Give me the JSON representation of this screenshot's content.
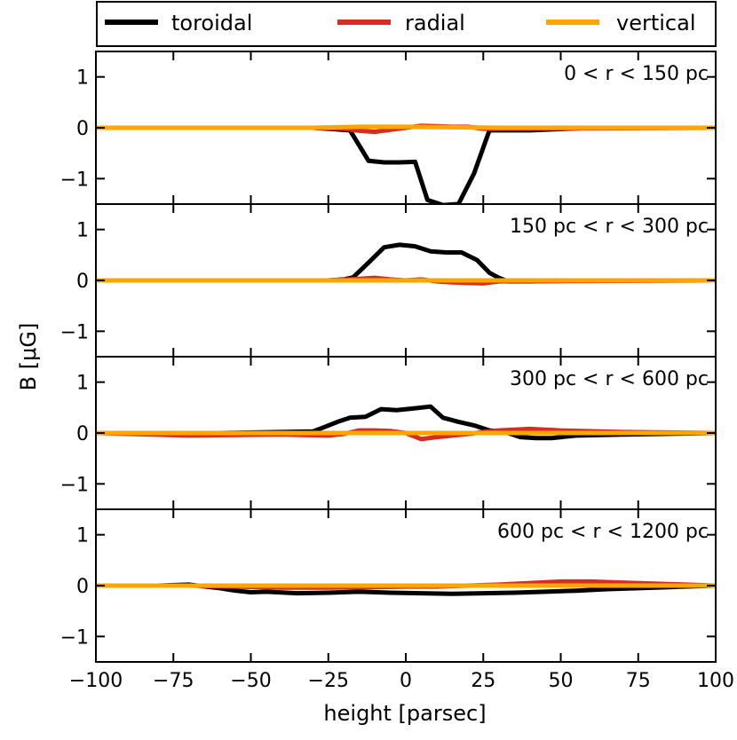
{
  "colors": {
    "toroidal": "#000000",
    "radial": "#d62d20",
    "vertical": "#ffa500"
  },
  "legend": {
    "items": [
      "toroidal",
      "radial",
      "vertical"
    ]
  },
  "chart_data": {
    "type": "line",
    "xlabel": "height [parsec]",
    "ylabel": "B [μG]",
    "xlim": [
      -100,
      100
    ],
    "ylim": [
      -1.5,
      1.5
    ],
    "x_ticks": [
      -100,
      -75,
      -50,
      -25,
      0,
      25,
      50,
      75,
      100
    ],
    "x_tick_labels": [
      "−100",
      "−75",
      "−50",
      "−25",
      "0",
      "25",
      "50",
      "75",
      "100"
    ],
    "y_ticks": [
      1,
      0,
      -1
    ],
    "y_tick_labels": [
      "1",
      "0",
      "−1"
    ],
    "panels": [
      {
        "title": "0 < r < 150 pc",
        "series": [
          {
            "name": "toroidal",
            "x": [
              -100,
              -60,
              -30,
              -18,
              -12,
              -7,
              -2,
              3,
              7,
              12,
              17,
              22,
              27,
              32,
              35,
              40,
              60,
              100
            ],
            "y": [
              0,
              0,
              0,
              -0.05,
              -0.65,
              -0.68,
              -0.68,
              -0.67,
              -1.42,
              -1.52,
              -1.5,
              -0.9,
              -0.05,
              -0.05,
              -0.05,
              -0.05,
              0,
              0
            ]
          },
          {
            "name": "radial",
            "x": [
              -100,
              -30,
              -20,
              -15,
              -10,
              -5,
              0,
              5,
              10,
              15,
              20,
              25,
              30,
              100
            ],
            "y": [
              0,
              0,
              -0.02,
              -0.06,
              -0.08,
              -0.04,
              0,
              0.04,
              0.03,
              0.02,
              0.02,
              -0.02,
              -0.02,
              0
            ]
          },
          {
            "name": "vertical",
            "x": [
              -100,
              -30,
              -15,
              0,
              15,
              30,
              100
            ],
            "y": [
              0,
              0,
              0.02,
              0.02,
              0.01,
              0,
              0
            ]
          }
        ]
      },
      {
        "title": "150 pc < r < 300 pc",
        "series": [
          {
            "name": "toroidal",
            "x": [
              -100,
              -40,
              -25,
              -20,
              -17,
              -12,
              -7,
              -2,
              3,
              8,
              13,
              18,
              23,
              27,
              30,
              33,
              40,
              60,
              100
            ],
            "y": [
              0,
              0,
              0,
              0.02,
              0.06,
              0.35,
              0.65,
              0.7,
              0.67,
              0.57,
              0.55,
              0.55,
              0.4,
              0.15,
              0.05,
              -0.02,
              -0.02,
              0,
              0
            ]
          },
          {
            "name": "radial",
            "x": [
              -100,
              -25,
              -15,
              -10,
              -5,
              0,
              5,
              10,
              15,
              20,
              25,
              30,
              100
            ],
            "y": [
              0,
              0,
              0.03,
              0.05,
              0.02,
              0,
              0.02,
              -0.02,
              -0.04,
              -0.05,
              -0.06,
              -0.02,
              0
            ]
          },
          {
            "name": "vertical",
            "x": [
              -100,
              100
            ],
            "y": [
              0,
              0
            ]
          }
        ]
      },
      {
        "title": "300 pc < r < 600 pc",
        "series": [
          {
            "name": "toroidal",
            "x": [
              -100,
              -60,
              -40,
              -30,
              -27,
              -22,
              -18,
              -13,
              -8,
              -3,
              2,
              8,
              12,
              17,
              22,
              27,
              32,
              37,
              42,
              47,
              55,
              70,
              100
            ],
            "y": [
              0,
              0,
              0.02,
              0.03,
              0.1,
              0.22,
              0.3,
              0.32,
              0.47,
              0.45,
              0.48,
              0.52,
              0.3,
              0.22,
              0.15,
              0.05,
              0.02,
              -0.08,
              -0.1,
              -0.1,
              -0.05,
              -0.03,
              0
            ]
          },
          {
            "name": "radial",
            "x": [
              -100,
              -70,
              -40,
              -25,
              -20,
              -15,
              -10,
              -5,
              0,
              5,
              10,
              15,
              20,
              25,
              30,
              40,
              50,
              70,
              100
            ],
            "y": [
              0,
              -0.05,
              -0.03,
              -0.05,
              -0.02,
              0.05,
              0.05,
              0.04,
              0,
              -0.12,
              -0.08,
              -0.05,
              -0.02,
              0.02,
              0.05,
              0.08,
              0.05,
              0.02,
              0
            ]
          },
          {
            "name": "vertical",
            "x": [
              -100,
              100
            ],
            "y": [
              0,
              0
            ]
          }
        ]
      },
      {
        "title": "600 pc < r < 1200 pc",
        "series": [
          {
            "name": "toroidal",
            "x": [
              -100,
              -80,
              -70,
              -60,
              -55,
              -50,
              -45,
              -35,
              -25,
              -15,
              -5,
              5,
              15,
              25,
              35,
              45,
              55,
              65,
              75,
              85,
              100
            ],
            "y": [
              0,
              0,
              0.02,
              -0.05,
              -0.1,
              -0.13,
              -0.12,
              -0.15,
              -0.14,
              -0.12,
              -0.14,
              -0.15,
              -0.16,
              -0.15,
              -0.14,
              -0.12,
              -0.1,
              -0.07,
              -0.05,
              -0.03,
              0
            ]
          },
          {
            "name": "radial",
            "x": [
              -100,
              -70,
              -55,
              -40,
              -25,
              -10,
              0,
              10,
              20,
              30,
              40,
              50,
              60,
              70,
              80,
              100
            ],
            "y": [
              0,
              0,
              -0.02,
              -0.04,
              -0.04,
              -0.03,
              -0.02,
              -0.02,
              0,
              0.02,
              0.05,
              0.08,
              0.08,
              0.06,
              0.04,
              0
            ]
          },
          {
            "name": "vertical",
            "x": [
              -100,
              100
            ],
            "y": [
              0,
              0
            ]
          }
        ]
      }
    ]
  }
}
